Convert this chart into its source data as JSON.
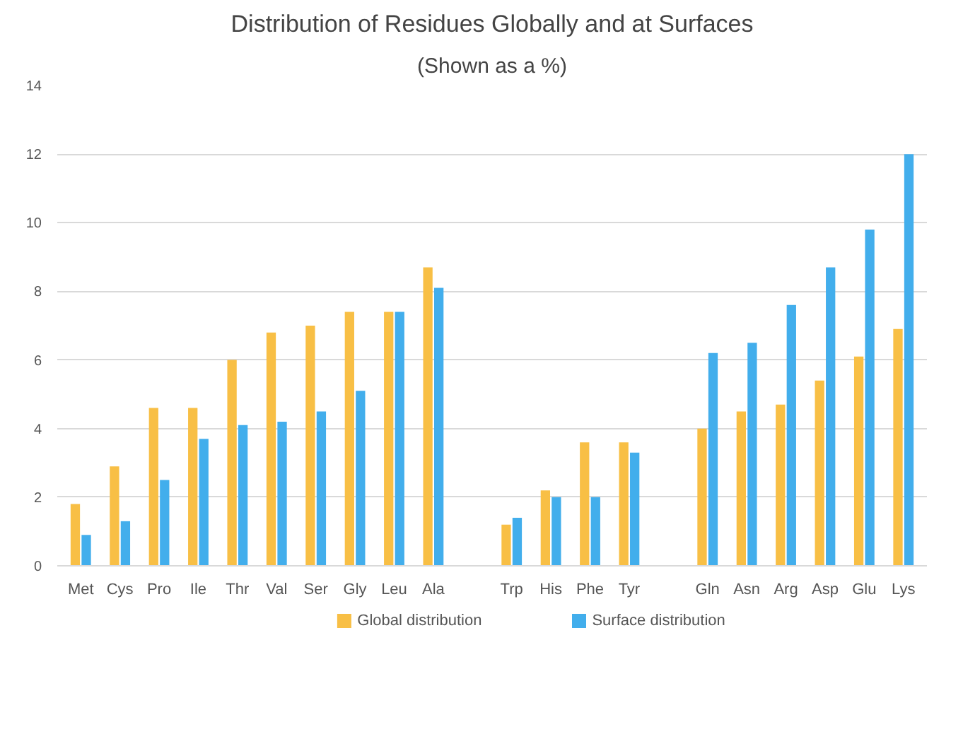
{
  "chart_data": {
    "type": "bar",
    "title": "Distribution of Residues Globally and at Surfaces",
    "subtitle": "(Shown as a %)",
    "categories": [
      "Met",
      "Cys",
      "Pro",
      "Ile",
      "Thr",
      "Val",
      "Ser",
      "Gly",
      "Leu",
      "Ala",
      null,
      "Trp",
      "His",
      "Phe",
      "Tyr",
      null,
      "Gln",
      "Asn",
      "Arg",
      "Asp",
      "Glu",
      "Lys"
    ],
    "series": [
      {
        "name": "Global distribution",
        "color": "#f8bf45",
        "values": [
          1.8,
          2.9,
          4.6,
          4.6,
          6.0,
          6.8,
          7.0,
          7.4,
          7.4,
          8.7,
          null,
          1.2,
          2.2,
          3.6,
          3.6,
          null,
          4.0,
          4.5,
          4.7,
          5.4,
          6.1,
          6.9
        ]
      },
      {
        "name": "Surface distribution",
        "color": "#42aeec",
        "values": [
          0.9,
          1.3,
          2.5,
          3.7,
          4.1,
          4.2,
          4.5,
          5.1,
          7.4,
          8.1,
          null,
          1.4,
          2.0,
          2.0,
          3.3,
          null,
          6.2,
          6.5,
          7.6,
          8.7,
          9.8,
          12.0
        ]
      }
    ],
    "ylim": [
      0,
      14
    ],
    "yticks": [
      0,
      2,
      4,
      6,
      8,
      10,
      12,
      14
    ],
    "grid": "y",
    "legend": "bottom"
  }
}
